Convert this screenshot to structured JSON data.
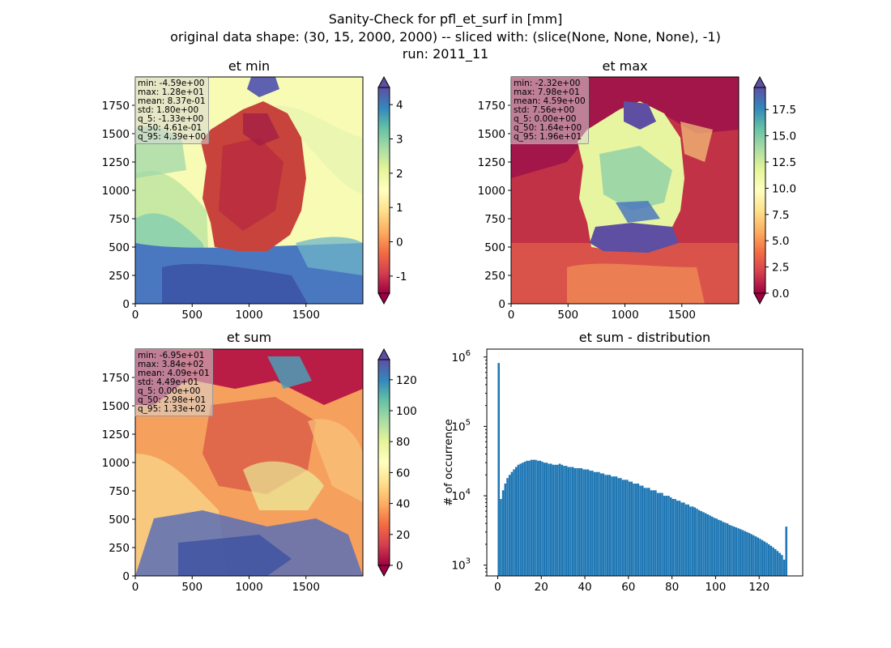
{
  "suptitle": {
    "line1": "Sanity-Check for pfl_et_surf in [mm]",
    "line2": "original data shape: (30, 15, 2000, 2000) -- sliced with: (slice(None, None, None), -1)",
    "line3": "run: 2011_11"
  },
  "colors": {
    "hist_bar": "#1f77b4",
    "colormap": "Spectral"
  },
  "chart_data": [
    {
      "type": "heatmap",
      "title": "et min",
      "colormap": "Spectral",
      "x_ticks": [
        "0",
        "500",
        "1000",
        "1500"
      ],
      "y_ticks": [
        "0",
        "250",
        "500",
        "750",
        "1000",
        "1250",
        "1500",
        "1750"
      ],
      "xlim": [
        0,
        2000
      ],
      "ylim": [
        0,
        2000
      ],
      "colorbar": {
        "range": [
          -1.5,
          4.5
        ],
        "ticks": [
          "-1",
          "0",
          "1",
          "2",
          "3",
          "4"
        ],
        "extend": "both"
      },
      "stats": [
        "min: -4.59e+00",
        "max: 1.28e+01",
        "mean: 8.37e-01",
        "std: 1.80e+00",
        "q_5: -1.33e+00",
        "q_50: 4.61e-01",
        "q_95: 4.39e+00"
      ]
    },
    {
      "type": "heatmap",
      "title": "et max",
      "colormap": "Spectral",
      "x_ticks": [
        "0",
        "500",
        "1000",
        "1500"
      ],
      "y_ticks": [
        "0",
        "250",
        "500",
        "750",
        "1000",
        "1250",
        "1500",
        "1750"
      ],
      "xlim": [
        0,
        2000
      ],
      "ylim": [
        0,
        2000
      ],
      "colorbar": {
        "range": [
          0,
          19.6
        ],
        "ticks": [
          "0.0",
          "2.5",
          "5.0",
          "7.5",
          "10.0",
          "12.5",
          "15.0",
          "17.5"
        ],
        "extend": "both"
      },
      "stats": [
        "min: -2.32e+00",
        "max: 7.98e+01",
        "mean: 4.59e+00",
        "std: 7.56e+00",
        "q_5: 0.00e+00",
        "q_50: 1.64e+00",
        "q_95: 1.96e+01"
      ]
    },
    {
      "type": "heatmap",
      "title": "et sum",
      "colormap": "Spectral",
      "x_ticks": [
        "0",
        "500",
        "1000",
        "1500"
      ],
      "y_ticks": [
        "0",
        "250",
        "500",
        "750",
        "1000",
        "1250",
        "1500",
        "1750"
      ],
      "xlim": [
        0,
        2000
      ],
      "ylim": [
        0,
        2000
      ],
      "colorbar": {
        "range": [
          0,
          133
        ],
        "ticks": [
          "0",
          "20",
          "40",
          "60",
          "80",
          "100",
          "120"
        ],
        "extend": "both"
      },
      "stats": [
        "min: -6.95e+01",
        "max: 3.84e+02",
        "mean: 4.09e+01",
        "std: 4.49e+01",
        "q_5: 0.00e+00",
        "q_50: 2.98e+01",
        "q_95: 1.33e+02"
      ]
    },
    {
      "type": "bar",
      "title": "et sum - distribution",
      "xlabel": "",
      "ylabel": "# of occurrence",
      "yscale": "log",
      "xlim": [
        -5,
        140
      ],
      "ylim": [
        700,
        1300000
      ],
      "x_ticks": [
        "0",
        "20",
        "40",
        "60",
        "80",
        "100",
        "120"
      ],
      "y_ticks": [
        "10^3",
        "10^4",
        "10^5",
        "10^6"
      ],
      "bin_range": [
        0,
        133
      ],
      "values": [
        820000,
        9000,
        12000,
        15000,
        18000,
        20000,
        22000,
        24000,
        26000,
        28000,
        29000,
        30000,
        31000,
        32000,
        32000,
        33000,
        33000,
        33000,
        32000,
        32000,
        31000,
        30000,
        30000,
        29000,
        29000,
        28000,
        28000,
        28000,
        29000,
        28000,
        27000,
        27000,
        26000,
        26000,
        26000,
        25000,
        25000,
        25000,
        25000,
        24000,
        24000,
        24000,
        23000,
        23000,
        22000,
        22000,
        22000,
        21000,
        21000,
        20000,
        20000,
        20000,
        19000,
        19000,
        19000,
        18000,
        18000,
        17000,
        17000,
        17000,
        16000,
        16000,
        15000,
        15000,
        15000,
        14000,
        14000,
        13000,
        13000,
        13000,
        12000,
        12000,
        12000,
        11000,
        11000,
        11000,
        10000,
        10000,
        10000,
        9500,
        9000,
        9000,
        8500,
        8500,
        8000,
        8000,
        7500,
        7500,
        7000,
        7000,
        6800,
        6500,
        6200,
        6000,
        5800,
        5600,
        5400,
        5200,
        5000,
        4800,
        4700,
        4500,
        4400,
        4200,
        4100,
        4000,
        3800,
        3700,
        3600,
        3500,
        3400,
        3300,
        3200,
        3100,
        3000,
        2900,
        2800,
        2700,
        2600,
        2500,
        2400,
        2300,
        2200,
        2100,
        2000,
        1900,
        1800,
        1700,
        1600,
        1500,
        1400,
        1200,
        3600
      ]
    }
  ]
}
